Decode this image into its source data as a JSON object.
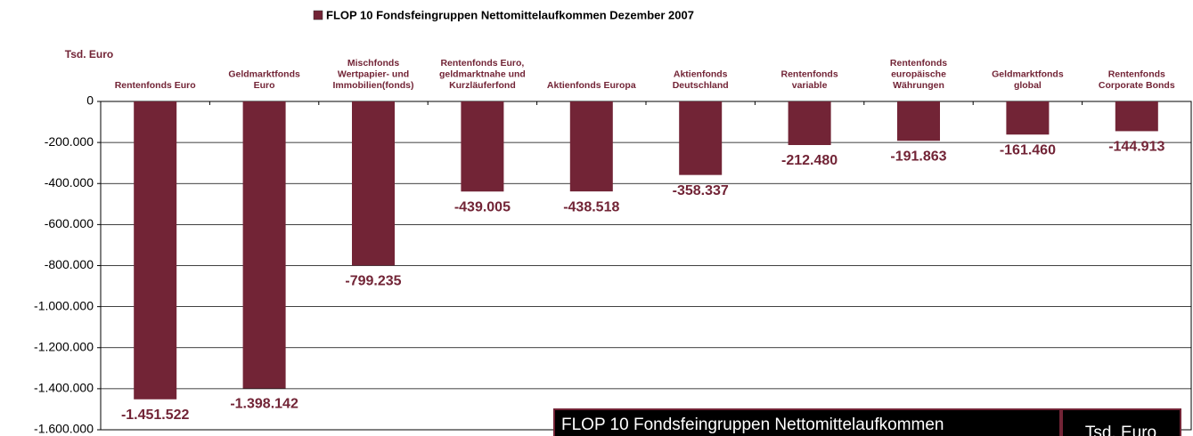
{
  "chart_data": {
    "type": "bar",
    "title": "FLOP 10 Fondsfeingruppen Nettomittelaufkommen Dezember 2007",
    "y_axis_label": "Tsd. Euro",
    "categories": [
      [
        "Rentenfonds Euro"
      ],
      [
        "Geldmarktfonds",
        "Euro"
      ],
      [
        "Mischfonds",
        "Wertpapier- und",
        "Immobilien(fonds)"
      ],
      [
        "Rentenfonds Euro,",
        "geldmarktnahe und",
        "Kurzläuferfond"
      ],
      [
        "Aktienfonds Europa"
      ],
      [
        "Aktienfonds",
        "Deutschland"
      ],
      [
        "Rentenfonds",
        "variable"
      ],
      [
        "Rentenfonds",
        "europäische",
        "Währungen"
      ],
      [
        "Geldmarktfonds",
        "global"
      ],
      [
        "Rentenfonds",
        "Corporate Bonds"
      ]
    ],
    "values": [
      -1451522,
      -1398142,
      -799235,
      -439005,
      -438518,
      -358337,
      -212480,
      -191863,
      -161460,
      -144913
    ],
    "value_labels": [
      "-1.451.522",
      "-1.398.142",
      "-799.235",
      "-439.005",
      "-438.518",
      "-358.337",
      "-212.480",
      "-191.863",
      "-161.460",
      "-144.913"
    ],
    "color": "#722436",
    "ylim": [
      -1600000,
      0
    ],
    "yticks": [
      0,
      {
        "value": -200000,
        "label": "-200.000"
      },
      {
        "value": -400000,
        "label": "-400.000"
      },
      {
        "value": -600000,
        "label": "-600.000"
      },
      {
        "value": -800000,
        "label": "-800.000"
      },
      {
        "value": -1000000,
        "label": "-1.000.000"
      },
      {
        "value": -1200000,
        "label": "-1.200.000"
      },
      {
        "value": -1400000,
        "label": "-1.400.000"
      },
      {
        "value": -1600000,
        "label": "-1.600.000"
      }
    ],
    "grid": true,
    "table_header": [
      "FLOP 10 Fondsfeingruppen Nettomittelaufkommen",
      "Tsd. Euro"
    ]
  }
}
